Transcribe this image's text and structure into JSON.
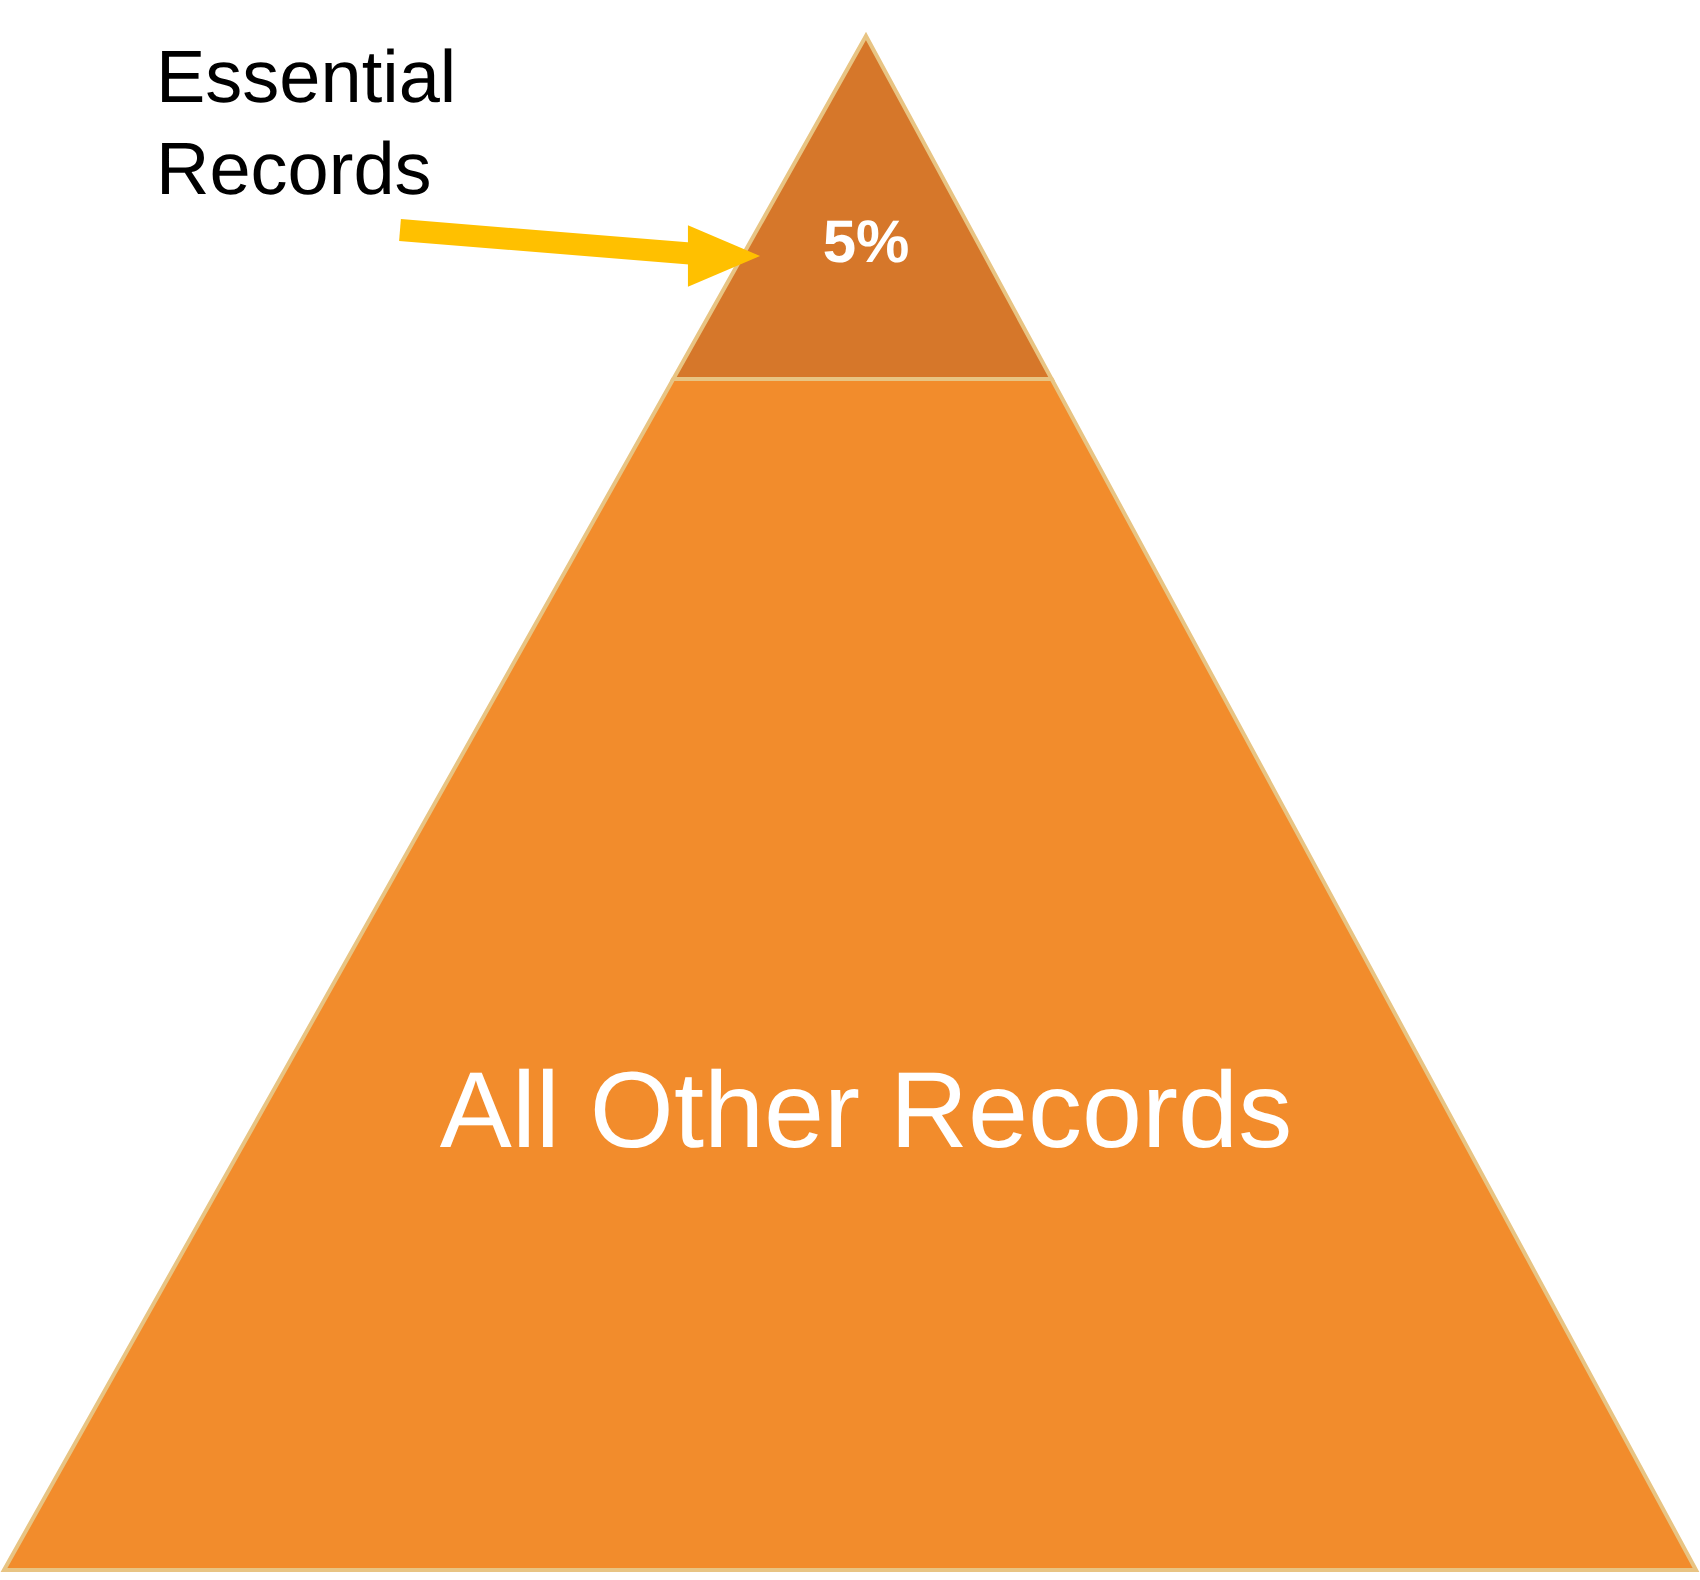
{
  "chart_data": {
    "type": "other",
    "categories": [
      "Essential Records",
      "All Other Records"
    ],
    "values": [
      5,
      null
    ],
    "value_labels": [
      "5%",
      null
    ],
    "colors": [
      "#d6772a",
      "#f28c2c"
    ]
  }
}
